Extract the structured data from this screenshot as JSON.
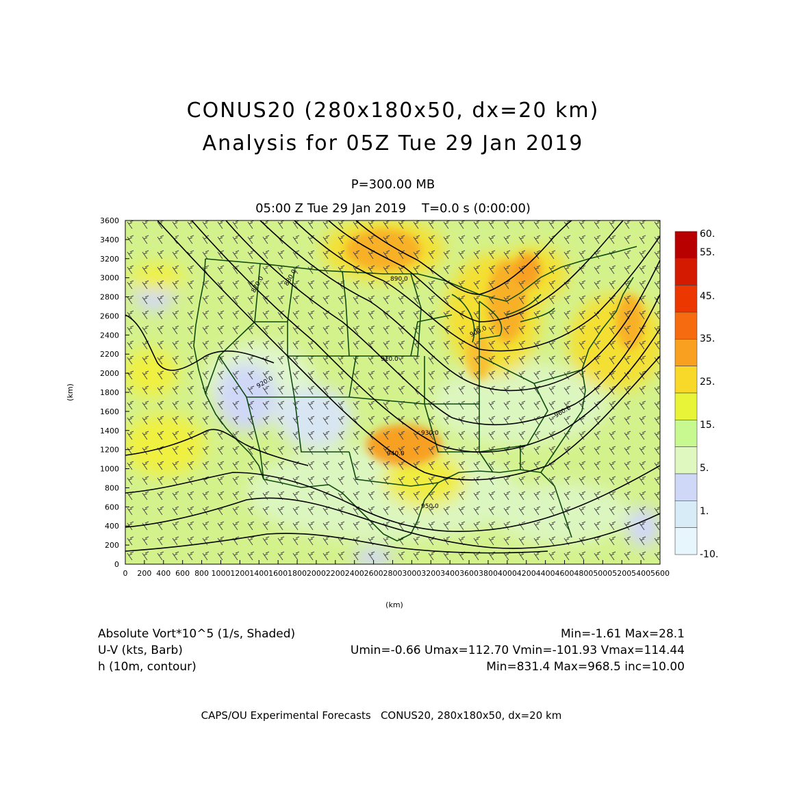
{
  "header": {
    "title_line1": "CONUS20 (280x180x50, dx=20 km)",
    "title_line2": "Analysis for 05Z Tue 29 Jan 2019",
    "level": "P=300.00 MB",
    "time": "05:00 Z Tue 29 Jan 2019    T=0.0 s (0:00:00)"
  },
  "axes": {
    "y_label": "(km)",
    "x_label": "(km)",
    "y_ticks": [
      "0",
      "200",
      "400",
      "600",
      "800",
      "1000",
      "1200",
      "1400",
      "1600",
      "1800",
      "2000",
      "2200",
      "2400",
      "2600",
      "2800",
      "3000",
      "3200",
      "3400",
      "3600"
    ],
    "x_ticks": [
      "0",
      "200",
      "400",
      "600",
      "800",
      "1000",
      "1200",
      "1400",
      "1600",
      "1800",
      "2000",
      "2200",
      "2400",
      "2600",
      "2800",
      "3000",
      "3200",
      "3400",
      "3600",
      "3800",
      "4000",
      "4200",
      "4400",
      "4600",
      "4800",
      "5000",
      "5200",
      "5400",
      "5600"
    ]
  },
  "colorbar": {
    "labels": [
      "60.",
      "55.",
      "45.",
      "35.",
      "25.",
      "15.",
      "5.",
      "1.",
      "-10."
    ],
    "colors": [
      "#b80000",
      "#d41a00",
      "#ec3800",
      "#f66a10",
      "#f9a020",
      "#f8d828",
      "#e8f438",
      "#c8f890",
      "#dff8c0",
      "#d0d8f8",
      "#d8ecf8",
      "#e6f6fc"
    ]
  },
  "contour_labels": [
    "870.0",
    "880.0",
    "890.0",
    "900.0",
    "910.0",
    "920.0",
    "930.0",
    "940.0",
    "950.0",
    "960.0"
  ],
  "legend": {
    "line1_left": "Absolute Vort*10^5 (1/s, Shaded)",
    "line1_right": "Min=-1.61 Max=28.1",
    "line2_left": "U-V (kts, Barb)",
    "line2_right": "Umin=-0.66 Umax=112.70 Vmin=-101.93 Vmax=114.44",
    "line3_left": "h (10m, contour)",
    "line3_right": "Min=831.4 Max=968.5 inc=10.00"
  },
  "footer": "CAPS/OU Experimental Forecasts   CONUS20, 280x180x50, dx=20 km",
  "colors": {
    "background": "#ffffff",
    "map_base": "#d4f28c",
    "state_lines": "#0f4a0f",
    "contour_lines": "#000000"
  }
}
